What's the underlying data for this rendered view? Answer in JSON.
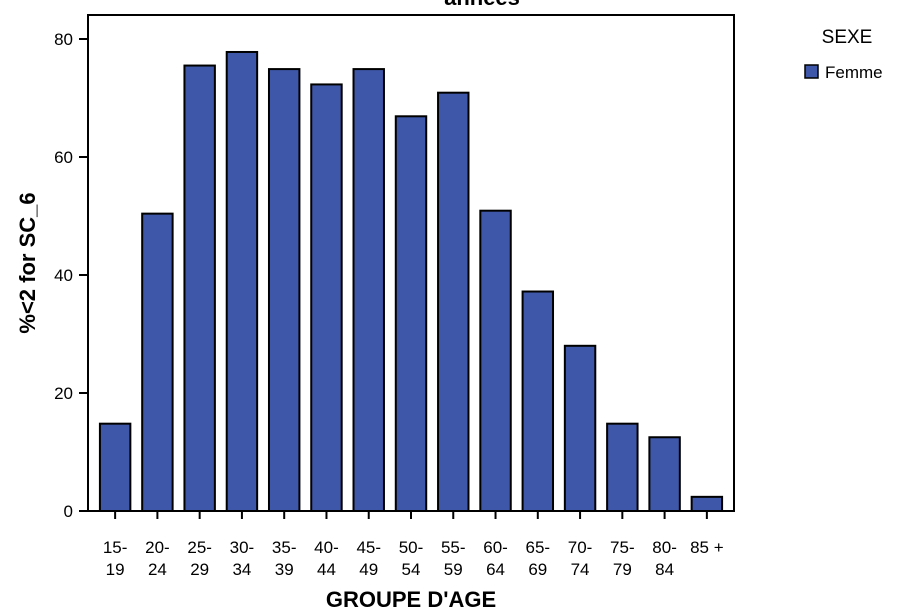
{
  "chart_data": {
    "type": "bar",
    "title": "années",
    "xlabel": "GROUPE D'AGE",
    "ylabel": "%<2 for SC_6",
    "categories": [
      [
        "15-",
        "19"
      ],
      [
        "20-",
        "24"
      ],
      [
        "25-",
        "29"
      ],
      [
        "30-",
        "34"
      ],
      [
        "35-",
        "39"
      ],
      [
        "40-",
        "44"
      ],
      [
        "45-",
        "49"
      ],
      [
        "50-",
        "54"
      ],
      [
        "55-",
        "59"
      ],
      [
        "60-",
        "64"
      ],
      [
        "65-",
        "69"
      ],
      [
        "70-",
        "74"
      ],
      [
        "75-",
        "79"
      ],
      [
        "80-",
        "84"
      ],
      [
        "85 +",
        ""
      ]
    ],
    "series": [
      {
        "name": "Femme",
        "color": "#3f57a8",
        "values": [
          14.8,
          50.4,
          75.5,
          77.8,
          74.9,
          72.3,
          74.9,
          66.9,
          70.9,
          50.9,
          37.2,
          28.0,
          14.8,
          12.5,
          2.4
        ]
      }
    ],
    "ylim": [
      0,
      80
    ],
    "yticks": [
      0,
      20,
      40,
      60,
      80
    ],
    "grid": false,
    "legend": {
      "title": "SEXE",
      "position": "right"
    }
  }
}
